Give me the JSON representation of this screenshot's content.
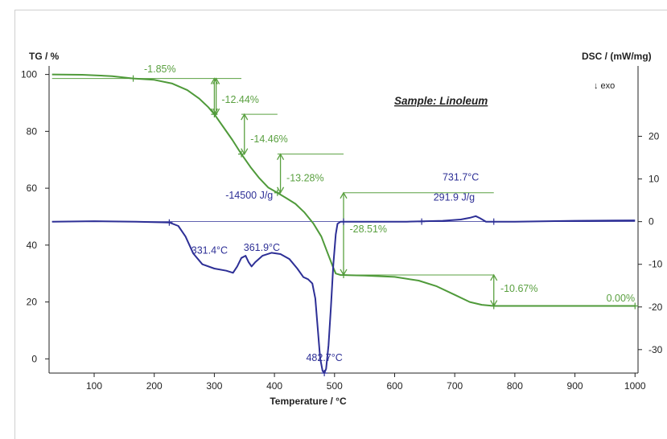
{
  "chart_data": {
    "type": "line",
    "title": "Sample: Linoleum",
    "xlabel": "Temperature / °C",
    "ylabel_left": "TG / %",
    "ylabel_right": "DSC / (mW/mg)",
    "exo_label": "↓ exo",
    "xlim": [
      25,
      1005
    ],
    "ylim_left": [
      -5,
      103
    ],
    "ylim_right": [
      -35.5,
      36.5
    ],
    "x_ticks": [
      100,
      200,
      300,
      400,
      500,
      600,
      700,
      800,
      900,
      1000
    ],
    "y_left_ticks": [
      0,
      20,
      40,
      60,
      80,
      100
    ],
    "y_right_ticks": [
      "-30",
      "-20",
      "-10",
      "0",
      "10",
      "20"
    ],
    "y_right_tick_values": [
      -30,
      -20,
      -10,
      0,
      10,
      20
    ],
    "colors": {
      "tg": "#4f9a3a",
      "dsc": "#2d2f96",
      "axis": "#222222",
      "annotation": "#5aa040"
    },
    "series": [
      {
        "key": "tg",
        "axis": "left",
        "points": [
          [
            30,
            100
          ],
          [
            80,
            99.9
          ],
          [
            130,
            99.4
          ],
          [
            165,
            98.6
          ],
          [
            200,
            98.1
          ],
          [
            230,
            96.8
          ],
          [
            255,
            94.5
          ],
          [
            275,
            91.5
          ],
          [
            290,
            88.5
          ],
          [
            300,
            86.0
          ],
          [
            315,
            81.5
          ],
          [
            330,
            77.0
          ],
          [
            345,
            72.0
          ],
          [
            360,
            67.5
          ],
          [
            375,
            63.5
          ],
          [
            390,
            60.2
          ],
          [
            405,
            58.4
          ],
          [
            420,
            56.5
          ],
          [
            435,
            54.5
          ],
          [
            450,
            51.5
          ],
          [
            465,
            47.5
          ],
          [
            478,
            43.0
          ],
          [
            488,
            37.5
          ],
          [
            497,
            32.5
          ],
          [
            502,
            30.0
          ],
          [
            510,
            29.5
          ],
          [
            550,
            29.3
          ],
          [
            600,
            28.8
          ],
          [
            640,
            27.5
          ],
          [
            670,
            25.5
          ],
          [
            700,
            22.5
          ],
          [
            725,
            20.0
          ],
          [
            745,
            19.0
          ],
          [
            765,
            18.6
          ],
          [
            800,
            18.6
          ],
          [
            900,
            18.6
          ],
          [
            1000,
            18.6
          ]
        ]
      },
      {
        "key": "dsc",
        "axis": "right",
        "points": [
          [
            30,
            0
          ],
          [
            100,
            0.1
          ],
          [
            170,
            0
          ],
          [
            225,
            -0.2
          ],
          [
            240,
            -1.0
          ],
          [
            252,
            -3.5
          ],
          [
            265,
            -7.5
          ],
          [
            280,
            -10.0
          ],
          [
            300,
            -11.0
          ],
          [
            320,
            -11.5
          ],
          [
            331,
            -12.0
          ],
          [
            338,
            -10.5
          ],
          [
            345,
            -8.5
          ],
          [
            352,
            -8.0
          ],
          [
            357,
            -9.5
          ],
          [
            362,
            -10.5
          ],
          [
            368,
            -9.5
          ],
          [
            380,
            -8.0
          ],
          [
            395,
            -7.3
          ],
          [
            410,
            -7.6
          ],
          [
            425,
            -8.8
          ],
          [
            438,
            -11.0
          ],
          [
            448,
            -13.0
          ],
          [
            456,
            -13.5
          ],
          [
            463,
            -14.5
          ],
          [
            468,
            -18.0
          ],
          [
            472,
            -25.0
          ],
          [
            476,
            -32.0
          ],
          [
            480,
            -35.0
          ],
          [
            483,
            -35.5
          ],
          [
            486,
            -34.5
          ],
          [
            490,
            -29.0
          ],
          [
            494,
            -20.0
          ],
          [
            498,
            -10.0
          ],
          [
            502,
            -3.0
          ],
          [
            505,
            -0.5
          ],
          [
            510,
            0
          ],
          [
            560,
            0
          ],
          [
            620,
            0
          ],
          [
            680,
            0.2
          ],
          [
            710,
            0.5
          ],
          [
            725,
            0.9
          ],
          [
            735,
            1.3
          ],
          [
            742,
            0.8
          ],
          [
            752,
            0
          ],
          [
            800,
            0
          ],
          [
            900,
            0.2
          ],
          [
            1000,
            0.3
          ]
        ]
      }
    ],
    "markers": {
      "tg": [
        [
          165,
          98.6
        ],
        [
          300,
          86.0
        ],
        [
          345,
          72.0
        ],
        [
          405,
          58.4
        ],
        [
          515,
          29.5
        ],
        [
          765,
          18.6
        ],
        [
          1000,
          18.6
        ]
      ],
      "dsc": [
        [
          225,
          -0.2
        ],
        [
          515,
          0
        ],
        [
          645,
          0
        ],
        [
          765,
          0
        ],
        [
          483,
          -35.5
        ]
      ]
    },
    "steps": [
      {
        "label": "-1.85%",
        "shelf_from": 30,
        "shelf_to": 300,
        "x": 300,
        "top": 98.6,
        "bottom": 86.0,
        "label_x": 183,
        "label_y": 100.8
      },
      {
        "label": "-12.44%",
        "shelf_from": 300,
        "shelf_to": 345,
        "x": 303,
        "top": 98.6,
        "bottom": 86.0,
        "label_x": 312,
        "label_y": 90.0
      },
      {
        "label": "-14.46%",
        "shelf_from": 345,
        "shelf_to": 405,
        "x": 350,
        "top": 86.0,
        "bottom": 72.0,
        "label_x": 360,
        "label_y": 76.2
      },
      {
        "label": "-13.28%",
        "shelf_from": 405,
        "shelf_to": 515,
        "x": 410,
        "top": 72.0,
        "bottom": 58.4,
        "label_x": 420,
        "label_y": 62.5
      },
      {
        "label": "-28.51%",
        "shelf_from": 515,
        "shelf_to": 765,
        "x": 515,
        "top": 58.4,
        "bottom": 29.5,
        "label_x": 525,
        "label_y": 44.5
      },
      {
        "label": "-10.67%",
        "shelf_from": 765,
        "shelf_to": 765,
        "x": 765,
        "top": 29.5,
        "bottom": 18.6,
        "label_x": 776,
        "label_y": 23.5
      }
    ],
    "annotations": [
      {
        "text": "-14500 J/g",
        "x": 358,
        "y": 56.4,
        "color": "dsc",
        "anchor": "middle"
      },
      {
        "text": "331.4°C",
        "x": 292,
        "y": 37.0,
        "color": "dsc",
        "anchor": "middle"
      },
      {
        "text": "361.9°C",
        "x": 379,
        "y": 38.0,
        "color": "dsc",
        "anchor": "middle"
      },
      {
        "text": "482.7°C",
        "x": 483,
        "y": -0.8,
        "color": "dsc",
        "anchor": "middle"
      },
      {
        "text": "731.7°C",
        "x": 710,
        "y": 62.7,
        "color": "dsc",
        "anchor": "middle"
      },
      {
        "text": "291.9 J/g",
        "x": 699,
        "y": 55.6,
        "color": "dsc",
        "anchor": "middle"
      },
      {
        "text": "0.00%",
        "x": 976,
        "y": 20.2,
        "color": "tg",
        "anchor": "middle"
      }
    ]
  }
}
